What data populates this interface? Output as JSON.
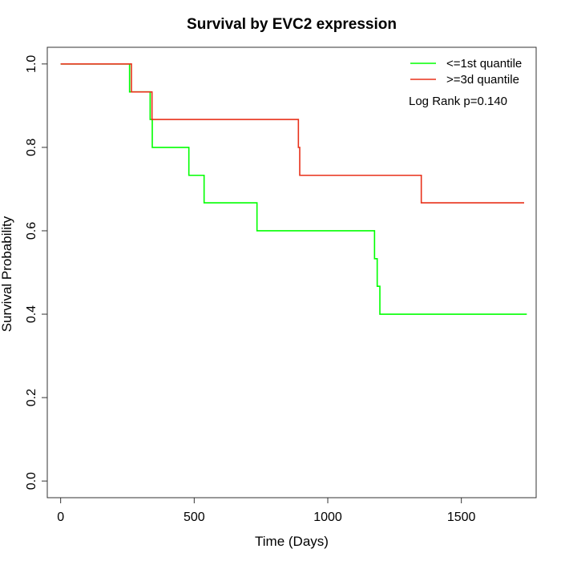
{
  "chart_data": {
    "type": "line",
    "title": "Survival by EVC2 expression",
    "xlabel": "Time (Days)",
    "ylabel": "Survival Probability",
    "xlim": [
      -50,
      1780
    ],
    "ylim": [
      -0.04,
      1.04
    ],
    "x_ticks": [
      0,
      500,
      1000,
      1500
    ],
    "x_tick_labels": [
      "0",
      "500",
      "1000",
      "1500"
    ],
    "y_ticks": [
      0.0,
      0.2,
      0.4,
      0.6,
      0.8,
      1.0
    ],
    "y_tick_labels": [
      "0.0",
      "0.2",
      "0.4",
      "0.6",
      "0.8",
      "1.0"
    ],
    "step": true,
    "grid": false,
    "legend_position": "top-right",
    "annotation": "Log Rank p=0.140",
    "series": [
      {
        "name": "<=1st quantile",
        "color": "#00ff00",
        "points": [
          [
            0,
            1.0
          ],
          [
            258,
            0.933
          ],
          [
            335,
            0.867
          ],
          [
            343,
            0.8
          ],
          [
            480,
            0.733
          ],
          [
            537,
            0.667
          ],
          [
            735,
            0.6
          ],
          [
            1175,
            0.533
          ],
          [
            1185,
            0.467
          ],
          [
            1195,
            0.4
          ],
          [
            1745,
            0.4
          ]
        ]
      },
      {
        "name": ">=3d quantile",
        "color": "#e8311a",
        "points": [
          [
            0,
            1.0
          ],
          [
            265,
            0.933
          ],
          [
            342,
            0.867
          ],
          [
            890,
            0.8
          ],
          [
            895,
            0.733
          ],
          [
            1350,
            0.667
          ],
          [
            1735,
            0.667
          ]
        ]
      }
    ]
  }
}
